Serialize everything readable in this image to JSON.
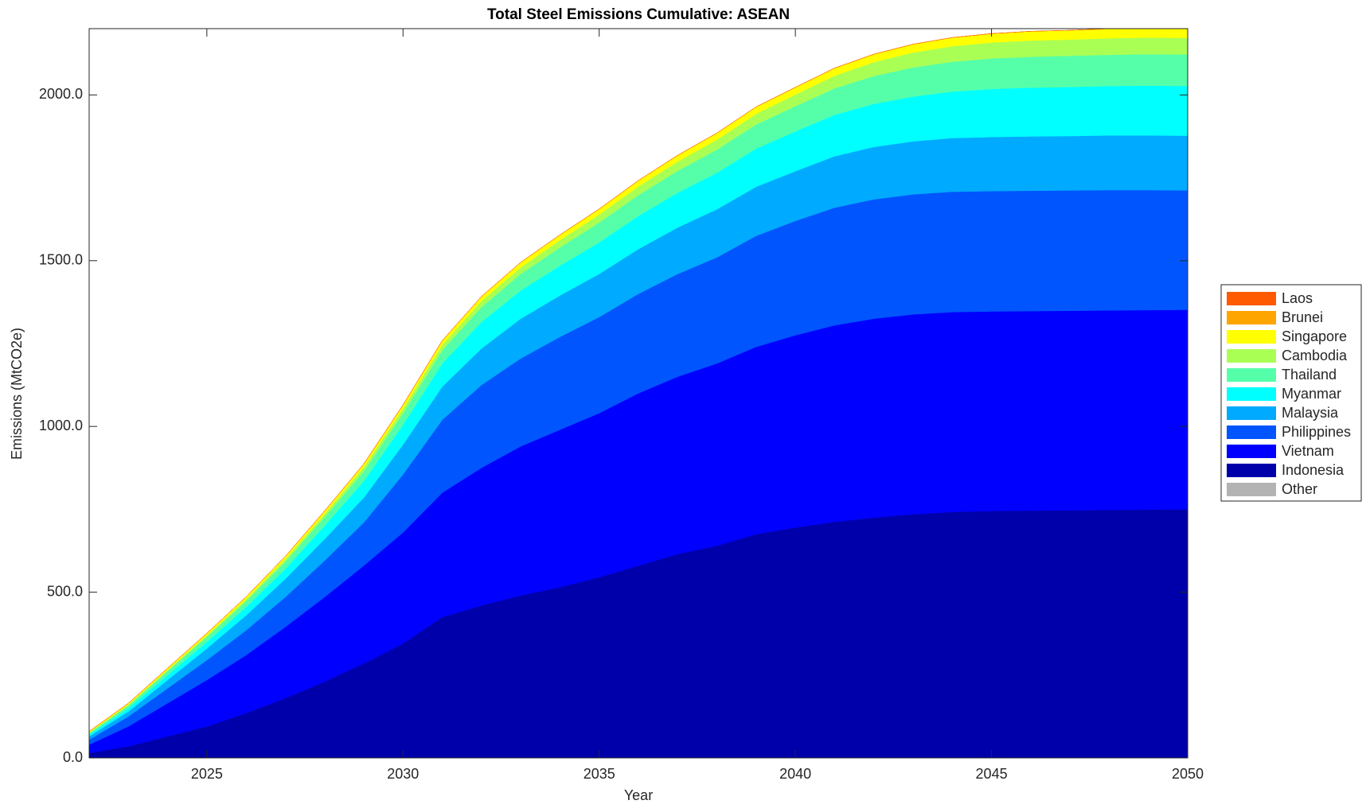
{
  "chart_data": {
    "type": "stacked_area",
    "title": "Total Steel Emissions Cumulative: ASEAN",
    "x_label": "Year",
    "y_label": "Emissions (MtCO2e)",
    "x": [
      2022,
      2023,
      2024,
      2025,
      2026,
      2027,
      2028,
      2029,
      2030,
      2031,
      2032,
      2033,
      2034,
      2035,
      2036,
      2037,
      2038,
      2039,
      2040,
      2041,
      2042,
      2043,
      2044,
      2045,
      2046,
      2047,
      2048,
      2049,
      2050
    ],
    "xlim": [
      2022,
      2050
    ],
    "xticks": [
      2025,
      2030,
      2035,
      2040,
      2045,
      2050
    ],
    "ylim": [
      0,
      2200
    ],
    "yticks": [
      {
        "value": 0,
        "label": "0.0"
      },
      {
        "value": 500,
        "label": "500.0"
      },
      {
        "value": 1000,
        "label": "1000.0"
      },
      {
        "value": 1500,
        "label": "1500.0"
      },
      {
        "value": 2000,
        "label": "2000.0"
      }
    ],
    "legend": "right",
    "series": [
      {
        "name": "Other",
        "color": "#b3b3b3",
        "values": [
          0,
          0,
          0,
          0,
          0,
          0,
          0,
          0,
          0,
          0,
          0,
          0,
          0,
          0,
          0,
          0,
          0,
          0,
          0,
          0,
          0,
          0,
          0,
          0,
          0,
          0,
          0,
          0,
          0
        ]
      },
      {
        "name": "Indonesia",
        "color": "#0000aa",
        "values": [
          15,
          35,
          65,
          95,
          135,
          180,
          230,
          285,
          345,
          425,
          460,
          490,
          515,
          545,
          580,
          615,
          640,
          675,
          695,
          712,
          725,
          735,
          742,
          745,
          746,
          747,
          748,
          749,
          750
        ]
      },
      {
        "name": "Vietnam",
        "color": "#0000ff",
        "values": [
          25,
          60,
          100,
          140,
          175,
          215,
          255,
          295,
          335,
          375,
          415,
          450,
          475,
          495,
          520,
          535,
          550,
          565,
          580,
          593,
          600,
          603,
          603,
          602,
          602,
          602,
          602,
          602,
          602
        ]
      },
      {
        "name": "Philippines",
        "color": "#0055ff",
        "values": [
          15,
          30,
          45,
          60,
          75,
          90,
          110,
          130,
          175,
          220,
          250,
          265,
          280,
          290,
          300,
          310,
          320,
          335,
          345,
          355,
          360,
          362,
          363,
          363,
          363,
          363,
          363,
          362,
          360
        ]
      },
      {
        "name": "Malaysia",
        "color": "#00aaff",
        "values": [
          10,
          15,
          25,
          35,
          45,
          55,
          65,
          75,
          90,
          100,
          110,
          120,
          125,
          130,
          135,
          140,
          145,
          148,
          150,
          155,
          158,
          160,
          162,
          163,
          164,
          164,
          165,
          165,
          165
        ]
      },
      {
        "name": "Myanmar",
        "color": "#00ffff",
        "values": [
          5,
          10,
          15,
          20,
          25,
          30,
          40,
          50,
          60,
          70,
          80,
          85,
          90,
          95,
          100,
          105,
          110,
          115,
          120,
          125,
          130,
          135,
          140,
          145,
          147,
          148,
          149,
          150,
          150
        ]
      },
      {
        "name": "Thailand",
        "color": "#55ffaa",
        "values": [
          5,
          8,
          12,
          15,
          18,
          22,
          26,
          30,
          35,
          40,
          45,
          50,
          55,
          60,
          63,
          66,
          70,
          73,
          76,
          80,
          84,
          88,
          90,
          92,
          93,
          94,
          94,
          95,
          95
        ]
      },
      {
        "name": "Cambodia",
        "color": "#aaff55",
        "values": [
          2,
          3,
          4,
          5,
          6,
          8,
          10,
          12,
          14,
          16,
          18,
          20,
          22,
          24,
          26,
          28,
          30,
          32,
          35,
          38,
          42,
          45,
          47,
          48,
          49,
          49,
          50,
          50,
          50
        ]
      },
      {
        "name": "Singapore",
        "color": "#ffff00",
        "values": [
          3,
          4,
          5,
          6,
          7,
          8,
          9,
          10,
          11,
          13,
          14,
          15,
          16,
          17,
          18,
          19,
          20,
          21,
          22,
          23,
          24,
          25,
          26,
          27,
          28,
          28,
          29,
          29,
          30
        ]
      },
      {
        "name": "Brunei",
        "color": "#ffa500",
        "values": [
          0,
          0,
          0,
          0,
          0,
          0,
          0,
          0,
          0,
          0,
          0,
          0,
          0,
          0,
          0,
          0,
          0,
          0,
          0,
          0,
          0,
          0,
          0,
          0,
          0,
          0,
          0,
          0,
          0
        ]
      },
      {
        "name": "Laos",
        "color": "#ff5a00",
        "values": [
          0,
          0,
          0,
          0,
          0,
          0,
          0,
          0,
          0,
          0,
          0,
          0,
          0,
          0,
          0,
          0,
          0,
          0,
          0,
          0,
          0,
          0,
          0,
          0,
          0,
          0,
          0,
          0,
          0
        ]
      }
    ]
  }
}
